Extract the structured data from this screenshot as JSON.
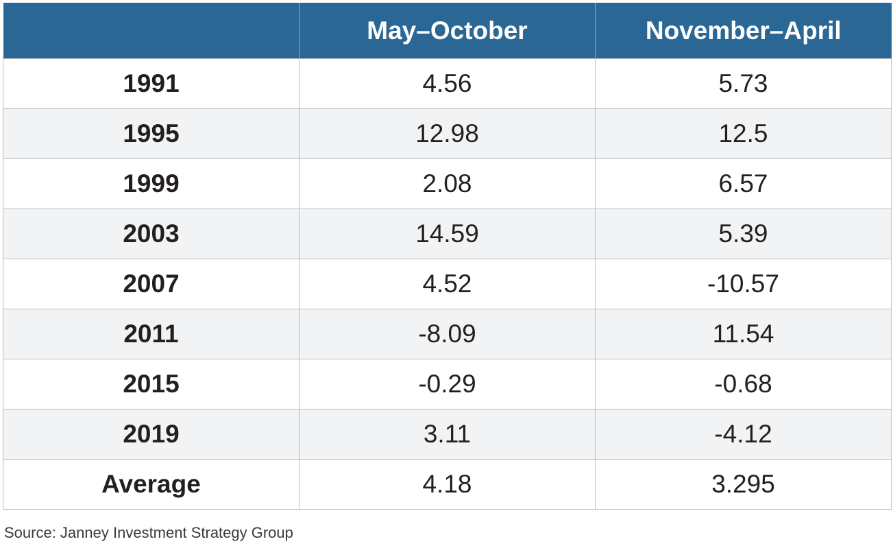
{
  "chart_data": {
    "type": "table",
    "columns": [
      "",
      "May–October",
      "November–April"
    ],
    "rows": [
      {
        "label": "1991",
        "values": [
          "4.56",
          "5.73"
        ]
      },
      {
        "label": "1995",
        "values": [
          "12.98",
          "12.5"
        ]
      },
      {
        "label": "1999",
        "values": [
          "2.08",
          "6.57"
        ]
      },
      {
        "label": "2003",
        "values": [
          "14.59",
          "5.39"
        ]
      },
      {
        "label": "2007",
        "values": [
          "4.52",
          "-10.57"
        ]
      },
      {
        "label": "2011",
        "values": [
          "-8.09",
          "11.54"
        ]
      },
      {
        "label": "2015",
        "values": [
          "-0.29",
          "-0.68"
        ]
      },
      {
        "label": "2019",
        "values": [
          "3.11",
          "-4.12"
        ]
      },
      {
        "label": "Average",
        "values": [
          "4.18",
          "3.295"
        ]
      }
    ],
    "source": "Source: Janney Investment Strategy Group",
    "colors": {
      "header_bg": "#2a6795",
      "header_text": "#ffffff",
      "stripe": "#f2f3f5",
      "border": "#b9bec3"
    }
  }
}
